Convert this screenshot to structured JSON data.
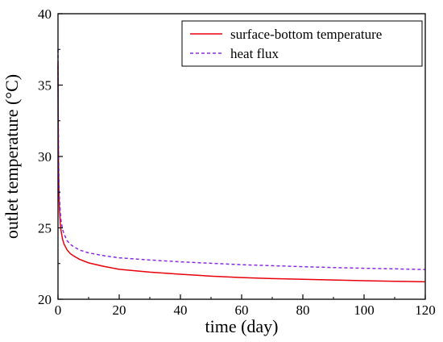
{
  "chart_data": {
    "type": "line",
    "title": "",
    "xlabel": "time (day)",
    "ylabel": "outlet temperature (°C)",
    "xlim": [
      0,
      120
    ],
    "ylim": [
      20,
      40
    ],
    "x_ticks": [
      0,
      20,
      40,
      60,
      80,
      100,
      120
    ],
    "y_ticks": [
      20,
      25,
      30,
      35,
      40
    ],
    "grid": false,
    "legend_position": "top-right",
    "series": [
      {
        "name": "surface-bottom temperature",
        "color": "#e8000b",
        "line_style": "solid",
        "x": [
          0,
          0.05,
          0.1,
          0.2,
          0.35,
          0.5,
          0.75,
          1,
          1.5,
          2,
          3,
          4,
          5,
          7,
          10,
          15,
          20,
          30,
          40,
          50,
          60,
          70,
          80,
          90,
          100,
          110,
          120
        ],
        "y": [
          36.5,
          33.5,
          31.2,
          28.8,
          27.1,
          26.2,
          25.3,
          24.8,
          24.2,
          23.85,
          23.45,
          23.2,
          23.05,
          22.8,
          22.55,
          22.3,
          22.1,
          21.9,
          21.75,
          21.62,
          21.52,
          21.45,
          21.4,
          21.35,
          21.3,
          21.26,
          21.22
        ]
      },
      {
        "name": "heat flux",
        "color": "#8a2be2",
        "line_style": "dashed",
        "x": [
          0,
          0.05,
          0.1,
          0.2,
          0.35,
          0.5,
          0.75,
          1,
          1.5,
          2,
          3,
          4,
          5,
          7,
          10,
          15,
          20,
          30,
          40,
          50,
          60,
          70,
          80,
          90,
          100,
          110,
          120
        ],
        "y": [
          37.5,
          34.5,
          32.2,
          29.8,
          28.0,
          27.0,
          26.1,
          25.5,
          24.9,
          24.55,
          24.1,
          23.85,
          23.7,
          23.45,
          23.25,
          23.05,
          22.9,
          22.75,
          22.62,
          22.52,
          22.42,
          22.35,
          22.28,
          22.22,
          22.17,
          22.13,
          22.08
        ]
      }
    ]
  }
}
